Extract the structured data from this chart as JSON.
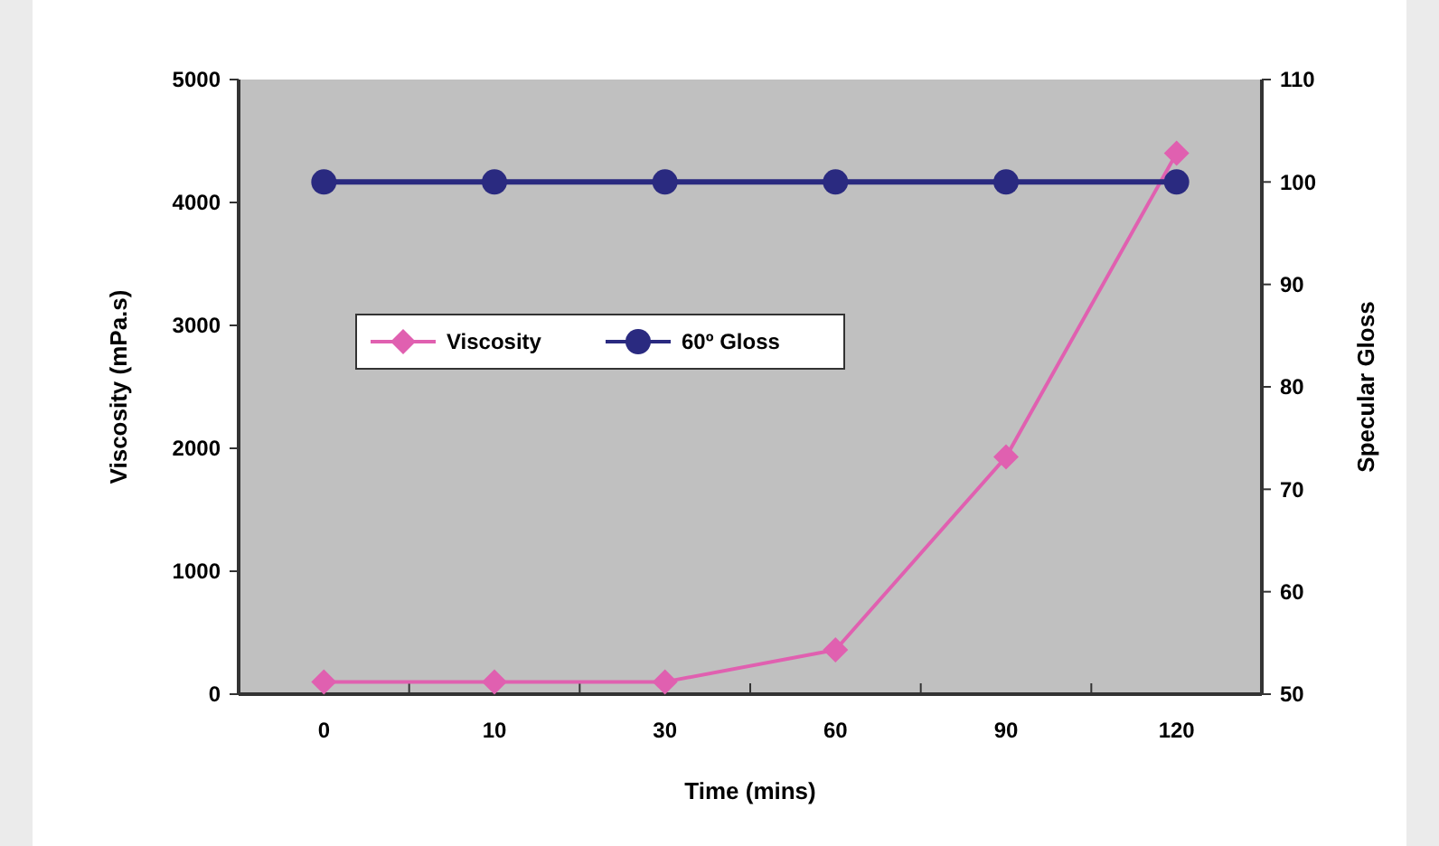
{
  "chart_data": {
    "type": "line",
    "xlabel": "Time (mins)",
    "ylabel": "Viscosity (mPa.s)",
    "y2label": "Specular Gloss",
    "categories": [
      "0",
      "10",
      "30",
      "60",
      "90",
      "120"
    ],
    "series": [
      {
        "name": "Viscosity",
        "color": "#e060b0",
        "marker": "diamond",
        "values": [
          100,
          100,
          100,
          360,
          1930,
          4400
        ]
      },
      {
        "name": "60º Gloss",
        "color": "#2a2a80",
        "marker": "circle",
        "axis": "y2",
        "values": [
          100,
          100,
          100,
          100,
          100,
          100
        ]
      }
    ],
    "ylim": [
      0,
      5000
    ],
    "yticks": [
      0,
      1000,
      2000,
      3000,
      4000,
      5000
    ],
    "y2lim": [
      50,
      110
    ],
    "y2ticks": [
      50,
      60,
      70,
      80,
      90,
      100,
      110
    ],
    "grid": false,
    "legend": "center"
  }
}
